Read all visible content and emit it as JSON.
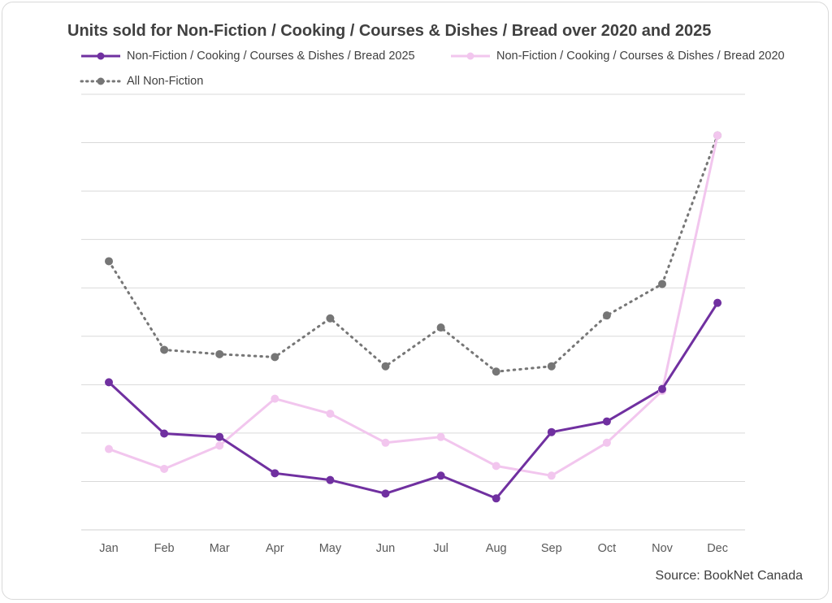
{
  "source": "Source: BookNet Canada",
  "chart_data": {
    "type": "line",
    "title": "Units sold for Non-Fiction / Cooking / Courses & Dishes / Bread over 2020 and 2025",
    "xlabel": "",
    "ylabel": "",
    "categories": [
      "Jan",
      "Feb",
      "Mar",
      "Apr",
      "May",
      "Jun",
      "Jul",
      "Aug",
      "Sep",
      "Oct",
      "Nov",
      "Dec"
    ],
    "ylim": [
      0,
      9
    ],
    "y_tick_labels_shown": false,
    "grid": true,
    "legend_position": "top",
    "series": [
      {
        "name": "Non-Fiction / Cooking / Courses & Dishes / Bread 2025",
        "color": "#7030a0",
        "style": "solid",
        "values": [
          3.05,
          1.99,
          1.92,
          1.17,
          1.03,
          0.75,
          1.12,
          0.65,
          2.02,
          2.24,
          2.91,
          4.69
        ]
      },
      {
        "name": "Non-Fiction / Cooking / Courses & Dishes / Bread 2020",
        "color": "#f2c6ee",
        "style": "solid",
        "values": [
          1.67,
          1.26,
          1.74,
          2.71,
          2.4,
          1.8,
          1.92,
          1.32,
          1.12,
          1.8,
          2.87,
          8.15
        ]
      },
      {
        "name": "All Non-Fiction",
        "color": "#767676",
        "style": "dotted",
        "values": [
          5.55,
          3.72,
          3.63,
          3.57,
          4.37,
          3.38,
          4.18,
          3.27,
          3.38,
          4.43,
          5.08,
          8.15
        ]
      }
    ]
  }
}
